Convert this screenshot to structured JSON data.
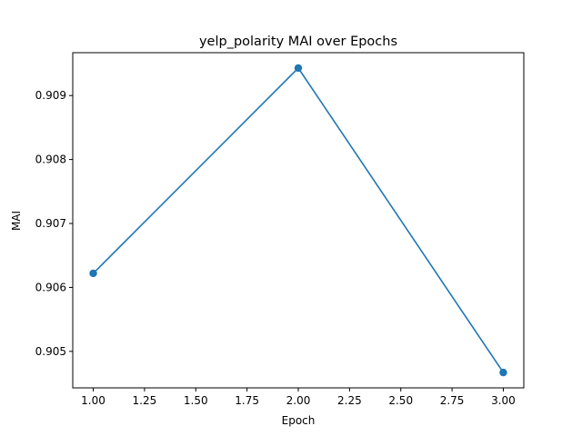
{
  "chart_data": {
    "type": "line",
    "title": "yelp_polarity MAI over Epochs",
    "xlabel": "Epoch",
    "ylabel": "MAI",
    "x": [
      1.0,
      2.0,
      3.0
    ],
    "series": [
      {
        "values": [
          0.90622,
          0.90943,
          0.90467
        ],
        "color": "#1f77b4",
        "marker": "circle"
      }
    ],
    "xlim": [
      0.9,
      3.1
    ],
    "ylim": [
      0.90443,
      0.90967
    ],
    "xticks": [
      1.0,
      1.25,
      1.5,
      1.75,
      2.0,
      2.25,
      2.5,
      2.75,
      3.0
    ],
    "xtick_labels": [
      "1.00",
      "1.25",
      "1.50",
      "1.75",
      "2.00",
      "2.25",
      "2.50",
      "2.75",
      "3.00"
    ],
    "yticks": [
      0.905,
      0.906,
      0.907,
      0.908,
      0.909
    ],
    "ytick_labels": [
      "0.905",
      "0.906",
      "0.907",
      "0.908",
      "0.909"
    ],
    "grid": false,
    "legend": false
  }
}
